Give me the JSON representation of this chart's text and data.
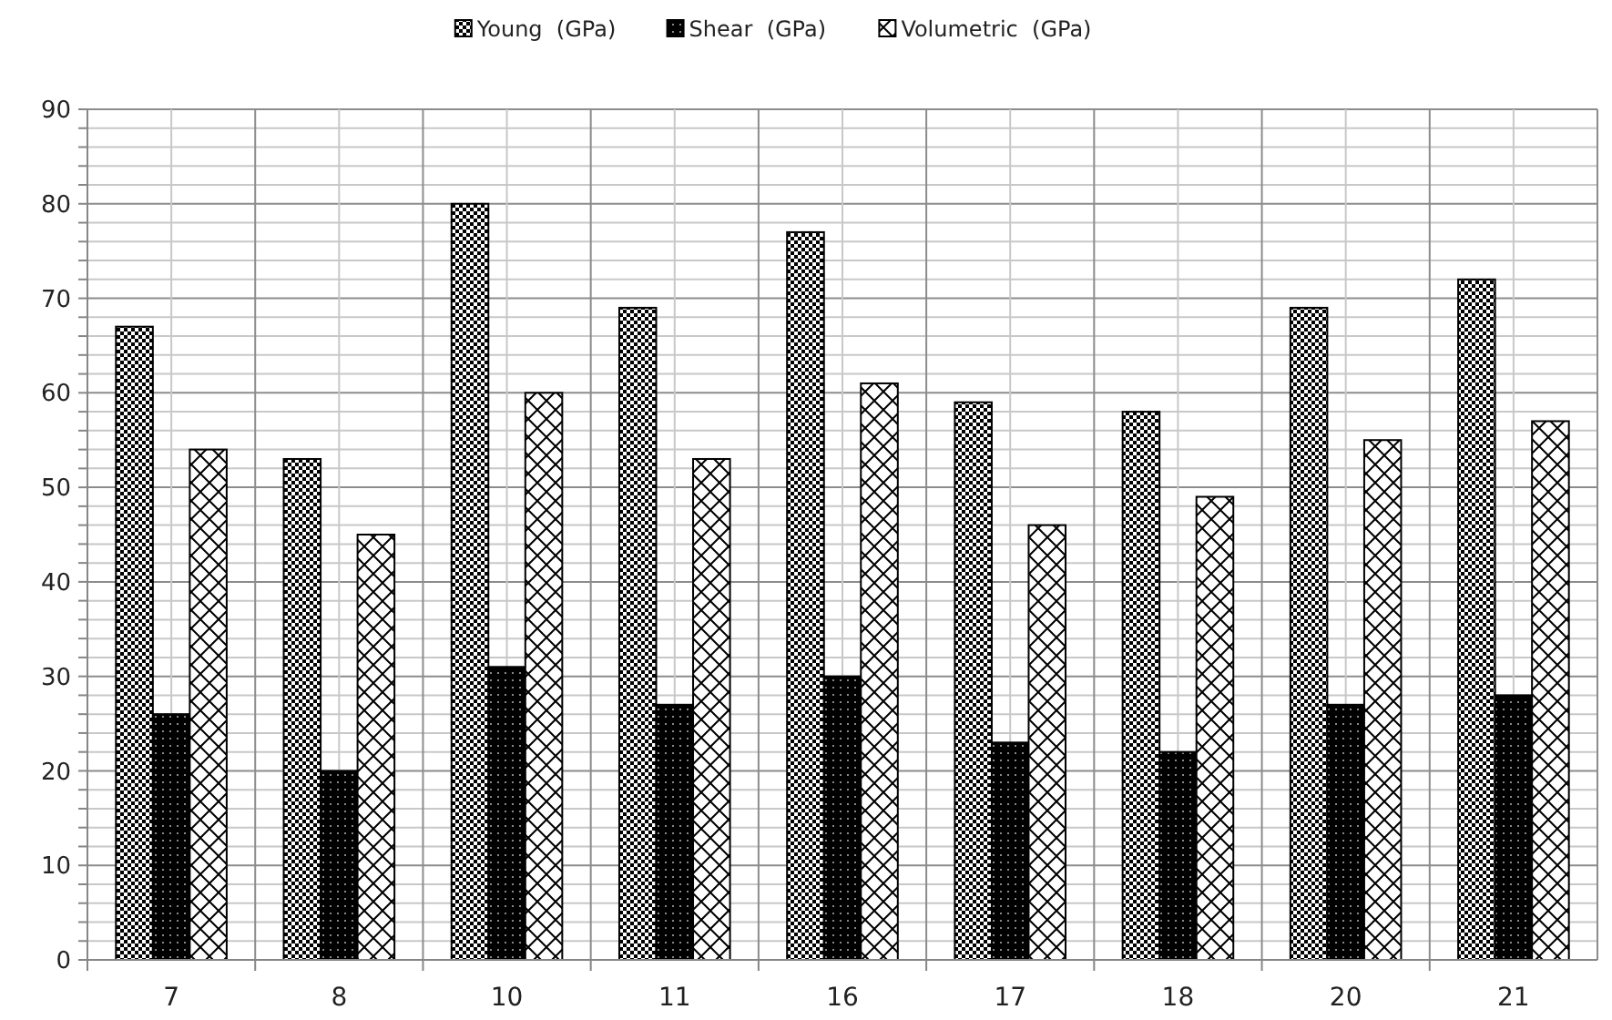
{
  "chart_data": {
    "type": "bar",
    "categories": [
      "7",
      "8",
      "10",
      "11",
      "16",
      "17",
      "18",
      "20",
      "21"
    ],
    "series": [
      {
        "name": "Young  (GPa)",
        "color": "#000000",
        "values": [
          67,
          53,
          80,
          69,
          77,
          59,
          58,
          69,
          72
        ]
      },
      {
        "name": "Shear  (GPa)",
        "color": "#000000",
        "values": [
          26,
          20,
          31,
          27,
          30,
          23,
          22,
          27,
          28
        ]
      },
      {
        "name": "Volumetric  (GPa)",
        "color": "#000000",
        "values": [
          54,
          45,
          60,
          53,
          61,
          46,
          49,
          55,
          57
        ]
      }
    ],
    "ylim": [
      0,
      90
    ],
    "yticks": [
      0,
      {
        "value": 2,
        "label": null
      },
      {
        "value": 4,
        "label": null
      },
      {
        "value": 6,
        "label": null
      },
      {
        "value": 8,
        "label": null
      },
      10,
      {
        "value": 12,
        "label": null
      },
      {
        "value": 14,
        "label": null
      },
      {
        "value": 16,
        "label": null
      },
      {
        "value": 18,
        "label": null
      },
      20,
      {
        "value": 22,
        "label": null
      },
      {
        "value": 24,
        "label": null
      },
      {
        "value": 26,
        "label": null
      },
      {
        "value": 28,
        "label": null
      },
      30,
      {
        "value": 32,
        "label": null
      },
      {
        "value": 34,
        "label": null
      },
      {
        "value": 36,
        "label": null
      },
      {
        "value": 38,
        "label": null
      },
      40,
      {
        "value": 42,
        "label": null
      },
      {
        "value": 44,
        "label": null
      },
      {
        "value": 46,
        "label": null
      },
      {
        "value": 48,
        "label": null
      },
      50,
      {
        "value": 52,
        "label": null
      },
      {
        "value": 54,
        "label": null
      },
      {
        "value": 56,
        "label": null
      },
      {
        "value": 58,
        "label": null
      },
      60,
      {
        "value": 62,
        "label": null
      },
      {
        "value": 64,
        "label": null
      },
      {
        "value": 66,
        "label": null
      },
      {
        "value": 68,
        "label": null
      },
      70,
      {
        "value": 72,
        "label": null
      },
      {
        "value": 74,
        "label": null
      },
      {
        "value": 76,
        "label": null
      },
      {
        "value": 78,
        "label": null
      },
      80,
      {
        "value": 82,
        "label": null
      },
      {
        "value": 84,
        "label": null
      },
      {
        "value": 86,
        "label": null
      },
      {
        "value": 88,
        "label": null
      },
      90
    ],
    "grid": true,
    "legend": "top"
  }
}
